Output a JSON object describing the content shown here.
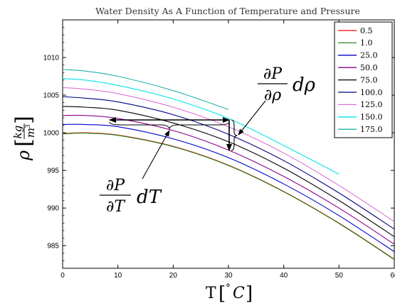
{
  "chart_data": {
    "type": "line",
    "title": "Water Density As A Function of Temperature and Pressure",
    "xlabel": "T [°C]",
    "ylabel": "ρ [kg/m³]",
    "ylabel_symbol": "ρ",
    "ylabel_num": "kg",
    "ylabel_den": "m",
    "ylabel_den_exp": "3",
    "xlim": [
      0,
      60
    ],
    "ylim": [
      982,
      1015
    ],
    "xticks": [
      0,
      10,
      20,
      30,
      40,
      50,
      60
    ],
    "yticks": [
      985,
      990,
      995,
      1000,
      1005,
      1010
    ],
    "grid": false,
    "legend": "top-right",
    "series": [
      {
        "name": "0.5",
        "color": "#ff0000",
        "x": [
          0,
          4,
          10,
          20,
          30,
          40,
          50,
          60
        ],
        "y": [
          999.9,
          1000.0,
          999.7,
          998.2,
          995.7,
          992.2,
          988.0,
          983.2
        ]
      },
      {
        "name": "1.0",
        "color": "#228b22",
        "x": [
          0,
          4,
          10,
          20,
          30,
          40,
          50,
          60
        ],
        "y": [
          999.85,
          999.95,
          999.65,
          998.15,
          995.65,
          992.15,
          987.95,
          983.15
        ]
      },
      {
        "name": "25.0",
        "color": "#0000cd",
        "x": [
          0,
          4,
          10,
          20,
          30,
          40,
          50,
          60
        ],
        "y": [
          1001.1,
          1001.1,
          1000.8,
          999.2,
          996.7,
          993.2,
          989.0,
          984.2
        ]
      },
      {
        "name": "50.0",
        "color": "#8b008b",
        "x": [
          0,
          4,
          10,
          20,
          30,
          40,
          50,
          60
        ],
        "y": [
          1002.3,
          1002.3,
          1001.9,
          1000.3,
          997.7,
          994.2,
          990.0,
          985.2
        ]
      },
      {
        "name": "75.0",
        "color": "#000000",
        "x": [
          0,
          4,
          10,
          20,
          30,
          40,
          50,
          60
        ],
        "y": [
          1003.5,
          1003.4,
          1003.0,
          1001.3,
          998.8,
          995.3,
          991.0,
          986.2
        ]
      },
      {
        "name": "100.0",
        "color": "#000080",
        "x": [
          0,
          4,
          10,
          20,
          30,
          40,
          50,
          60
        ],
        "y": [
          1004.8,
          1004.6,
          1004.1,
          1002.4,
          999.8,
          996.3,
          992.0,
          987.2
        ]
      },
      {
        "name": "125.0",
        "color": "#da70d6",
        "x": [
          0,
          4,
          10,
          20,
          30,
          40,
          50,
          60
        ],
        "y": [
          1006.0,
          1005.8,
          1005.2,
          1003.4,
          1000.8,
          997.3,
          993.0,
          988.2
        ]
      },
      {
        "name": "150.0",
        "color": "#00e5ee",
        "x": [
          0,
          4,
          10,
          20,
          30,
          40,
          50
        ],
        "y": [
          1007.2,
          1007.0,
          1006.3,
          1004.5,
          1001.9,
          998.3,
          994.5
        ]
      },
      {
        "name": "175.0",
        "color": "#20b2aa",
        "x": [
          0,
          4,
          10,
          20,
          30
        ],
        "y": [
          1008.4,
          1008.2,
          1007.5,
          1005.6,
          1003.1
        ]
      }
    ],
    "annotations": [
      {
        "id": "drho",
        "num": "∂P",
        "den": "∂ρ",
        "tail": "dρ"
      },
      {
        "id": "dT",
        "num": "∂P",
        "den": "∂T",
        "tail": "dT"
      }
    ]
  }
}
